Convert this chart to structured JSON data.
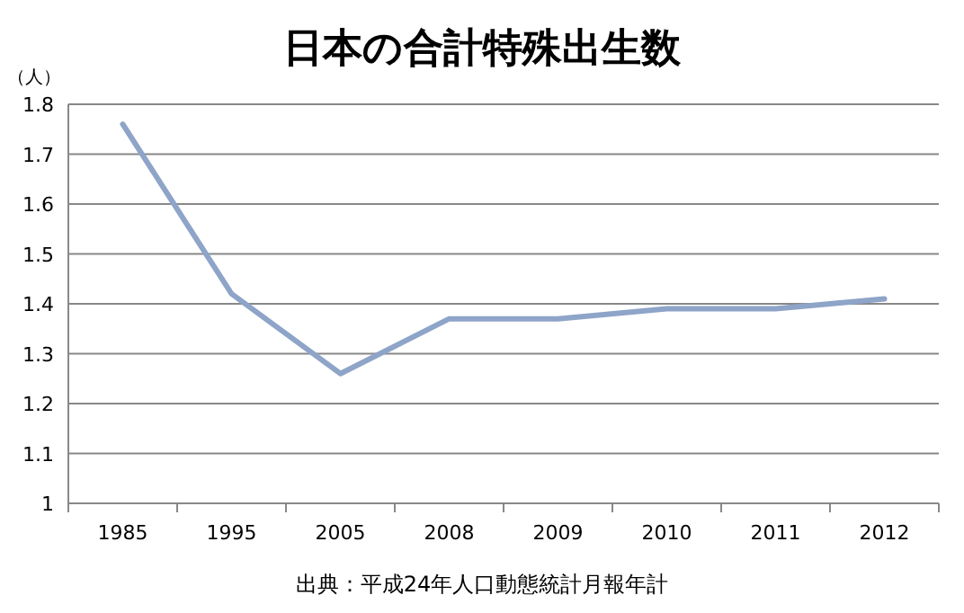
{
  "chart_data": {
    "type": "line",
    "title": "日本の合計特殊出生数",
    "ylabel": "（人）",
    "categories": [
      "1985",
      "1995",
      "2005",
      "2008",
      "2009",
      "2010",
      "2011",
      "2012"
    ],
    "series": [
      {
        "color": "#8ea4c8",
        "values": [
          1.76,
          1.42,
          1.26,
          1.37,
          1.37,
          1.39,
          1.39,
          1.41
        ]
      }
    ],
    "ylim": [
      1,
      1.8
    ],
    "yticks": [
      {
        "value": 1,
        "label": "1"
      },
      1.1,
      1.2,
      1.3,
      1.4,
      1.5,
      1.6,
      1.7,
      1.8
    ],
    "grid": "y",
    "marker": "none",
    "line_style": "solid",
    "annotations": [
      "出典：平成24年人口動態統計月報年計"
    ]
  }
}
